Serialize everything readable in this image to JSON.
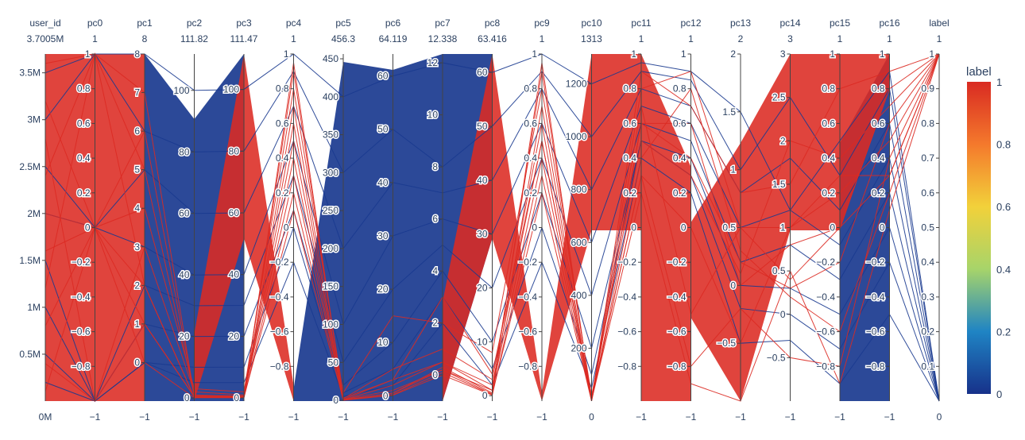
{
  "chart_data": {
    "type": "parallel_coordinates",
    "color_dimension": "label",
    "colorscale": [
      [
        "0",
        "#17318a"
      ],
      [
        "0.2",
        "#1f84c4"
      ],
      [
        "0.4",
        "#a7d46a"
      ],
      [
        "0.6",
        "#f2d13a"
      ],
      [
        "0.8",
        "#f4792c"
      ],
      [
        "1",
        "#d92a22"
      ]
    ],
    "line_colors": {
      "label_0": "#1a3a8f",
      "label_1": "#dc2a22"
    },
    "colorbar": {
      "title": "label",
      "tick_labels": [
        "0",
        "0.2",
        "0.4",
        "0.6",
        "0.8",
        "1"
      ]
    },
    "dimensions": [
      {
        "name": "user_id",
        "range": [
          0,
          3700500
        ],
        "max_label": "3.7005M",
        "min_label": "0M",
        "ticks": [
          {
            "v": 500000,
            "t": "0.5M"
          },
          {
            "v": 1000000,
            "t": "1M"
          },
          {
            "v": 1500000,
            "t": "1.5M"
          },
          {
            "v": 2000000,
            "t": "2M"
          },
          {
            "v": 2500000,
            "t": "2.5M"
          },
          {
            "v": 3000000,
            "t": "3M"
          },
          {
            "v": 3500000,
            "t": "3.5M"
          }
        ]
      },
      {
        "name": "pc0",
        "range": [
          -1,
          1
        ],
        "max_label": "1",
        "min_label": "−1",
        "ticks": [
          {
            "v": -0.8,
            "t": "−0.8"
          },
          {
            "v": -0.6,
            "t": "−0.6"
          },
          {
            "v": -0.4,
            "t": "−0.4"
          },
          {
            "v": -0.2,
            "t": "−0.2"
          },
          {
            "v": 0,
            "t": "0"
          },
          {
            "v": 0.2,
            "t": "0.2"
          },
          {
            "v": 0.4,
            "t": "0.4"
          },
          {
            "v": 0.6,
            "t": "0.6"
          },
          {
            "v": 0.8,
            "t": "0.8"
          },
          {
            "v": 1,
            "t": "1"
          }
        ]
      },
      {
        "name": "pc1",
        "range": [
          -1,
          8
        ],
        "max_label": "8",
        "min_label": "−1",
        "ticks": [
          {
            "v": 0,
            "t": "0"
          },
          {
            "v": 1,
            "t": "1"
          },
          {
            "v": 2,
            "t": "2"
          },
          {
            "v": 3,
            "t": "3"
          },
          {
            "v": 4,
            "t": "4"
          },
          {
            "v": 5,
            "t": "5"
          },
          {
            "v": 6,
            "t": "6"
          },
          {
            "v": 7,
            "t": "7"
          },
          {
            "v": 8,
            "t": "8"
          }
        ]
      },
      {
        "name": "pc2",
        "range": [
          -1,
          111.82
        ],
        "max_label": "111.82",
        "min_label": "−1",
        "ticks": [
          {
            "v": 0,
            "t": "0"
          },
          {
            "v": 20,
            "t": "20"
          },
          {
            "v": 40,
            "t": "40"
          },
          {
            "v": 60,
            "t": "60"
          },
          {
            "v": 80,
            "t": "80"
          },
          {
            "v": 100,
            "t": "100"
          }
        ]
      },
      {
        "name": "pc3",
        "range": [
          -1,
          111.47
        ],
        "max_label": "111.47",
        "min_label": "−1",
        "ticks": [
          {
            "v": 0,
            "t": "0"
          },
          {
            "v": 20,
            "t": "20"
          },
          {
            "v": 40,
            "t": "40"
          },
          {
            "v": 60,
            "t": "60"
          },
          {
            "v": 80,
            "t": "80"
          },
          {
            "v": 100,
            "t": "100"
          }
        ]
      },
      {
        "name": "pc4",
        "range": [
          -1,
          1
        ],
        "max_label": "1",
        "min_label": "−1",
        "ticks": [
          {
            "v": -0.8,
            "t": "−0.8"
          },
          {
            "v": -0.6,
            "t": "−0.6"
          },
          {
            "v": -0.4,
            "t": "−0.4"
          },
          {
            "v": -0.2,
            "t": "−0.2"
          },
          {
            "v": 0,
            "t": "0"
          },
          {
            "v": 0.2,
            "t": "0.2"
          },
          {
            "v": 0.4,
            "t": "0.4"
          },
          {
            "v": 0.6,
            "t": "0.6"
          },
          {
            "v": 0.8,
            "t": "0.8"
          },
          {
            "v": 1,
            "t": "1"
          }
        ]
      },
      {
        "name": "pc5",
        "range": [
          -1,
          456.3
        ],
        "max_label": "456.3",
        "min_label": "−1",
        "ticks": [
          {
            "v": 0,
            "t": "0"
          },
          {
            "v": 50,
            "t": "50"
          },
          {
            "v": 100,
            "t": "100"
          },
          {
            "v": 150,
            "t": "150"
          },
          {
            "v": 200,
            "t": "200"
          },
          {
            "v": 250,
            "t": "250"
          },
          {
            "v": 300,
            "t": "300"
          },
          {
            "v": 350,
            "t": "350"
          },
          {
            "v": 400,
            "t": "400"
          },
          {
            "v": 450,
            "t": "450"
          }
        ]
      },
      {
        "name": "pc6",
        "range": [
          -1,
          64.119
        ],
        "max_label": "64.119",
        "min_label": "−1",
        "ticks": [
          {
            "v": 0,
            "t": "0"
          },
          {
            "v": 10,
            "t": "10"
          },
          {
            "v": 20,
            "t": "20"
          },
          {
            "v": 30,
            "t": "30"
          },
          {
            "v": 40,
            "t": "40"
          },
          {
            "v": 50,
            "t": "50"
          },
          {
            "v": 60,
            "t": "60"
          }
        ]
      },
      {
        "name": "pc7",
        "range": [
          -1,
          12.338
        ],
        "max_label": "12.338",
        "min_label": "−1",
        "ticks": [
          {
            "v": 0,
            "t": "0"
          },
          {
            "v": 2,
            "t": "2"
          },
          {
            "v": 4,
            "t": "4"
          },
          {
            "v": 6,
            "t": "6"
          },
          {
            "v": 8,
            "t": "8"
          },
          {
            "v": 10,
            "t": "10"
          },
          {
            "v": 12,
            "t": "12"
          }
        ]
      },
      {
        "name": "pc8",
        "range": [
          -1,
          63.416
        ],
        "max_label": "63.416",
        "min_label": "−1",
        "ticks": [
          {
            "v": 0,
            "t": "0"
          },
          {
            "v": 10,
            "t": "10"
          },
          {
            "v": 20,
            "t": "20"
          },
          {
            "v": 30,
            "t": "30"
          },
          {
            "v": 40,
            "t": "40"
          },
          {
            "v": 50,
            "t": "50"
          },
          {
            "v": 60,
            "t": "60"
          }
        ]
      },
      {
        "name": "pc9",
        "range": [
          -1,
          1
        ],
        "max_label": "1",
        "min_label": "−1",
        "ticks": [
          {
            "v": -0.8,
            "t": "−0.8"
          },
          {
            "v": -0.6,
            "t": "−0.6"
          },
          {
            "v": -0.4,
            "t": "−0.4"
          },
          {
            "v": -0.2,
            "t": "−0.2"
          },
          {
            "v": 0,
            "t": "0"
          },
          {
            "v": 0.2,
            "t": "0.2"
          },
          {
            "v": 0.4,
            "t": "0.4"
          },
          {
            "v": 0.6,
            "t": "0.6"
          },
          {
            "v": 0.8,
            "t": "0.8"
          },
          {
            "v": 1,
            "t": "1"
          }
        ]
      },
      {
        "name": "pc10",
        "range": [
          0,
          1313
        ],
        "max_label": "1313",
        "min_label": "0",
        "ticks": [
          {
            "v": 200,
            "t": "200"
          },
          {
            "v": 400,
            "t": "400"
          },
          {
            "v": 600,
            "t": "600"
          },
          {
            "v": 800,
            "t": "800"
          },
          {
            "v": 1000,
            "t": "1000"
          },
          {
            "v": 1200,
            "t": "1200"
          }
        ]
      },
      {
        "name": "pc11",
        "range": [
          -1,
          1
        ],
        "max_label": "1",
        "min_label": "−1",
        "ticks": [
          {
            "v": -0.8,
            "t": "−0.8"
          },
          {
            "v": -0.6,
            "t": "−0.6"
          },
          {
            "v": -0.4,
            "t": "−0.4"
          },
          {
            "v": -0.2,
            "t": "−0.2"
          },
          {
            "v": 0,
            "t": "0"
          },
          {
            "v": 0.2,
            "t": "0.2"
          },
          {
            "v": 0.4,
            "t": "0.4"
          },
          {
            "v": 0.6,
            "t": "0.6"
          },
          {
            "v": 0.8,
            "t": "0.8"
          },
          {
            "v": 1,
            "t": "1"
          }
        ]
      },
      {
        "name": "pc12",
        "range": [
          -1,
          1
        ],
        "max_label": "1",
        "min_label": "−1",
        "ticks": [
          {
            "v": -0.8,
            "t": "−0.8"
          },
          {
            "v": -0.6,
            "t": "−0.6"
          },
          {
            "v": -0.4,
            "t": "−0.4"
          },
          {
            "v": -0.2,
            "t": "−0.2"
          },
          {
            "v": 0,
            "t": "0"
          },
          {
            "v": 0.2,
            "t": "0.2"
          },
          {
            "v": 0.4,
            "t": "0.4"
          },
          {
            "v": 0.6,
            "t": "0.6"
          },
          {
            "v": 0.8,
            "t": "0.8"
          },
          {
            "v": 1,
            "t": "1"
          }
        ]
      },
      {
        "name": "pc13",
        "range": [
          -1,
          2
        ],
        "max_label": "2",
        "min_label": "−1",
        "ticks": [
          {
            "v": -0.5,
            "t": "−0.5"
          },
          {
            "v": 0,
            "t": "0"
          },
          {
            "v": 0.5,
            "t": "0.5"
          },
          {
            "v": 1,
            "t": "1"
          },
          {
            "v": 1.5,
            "t": "1.5"
          },
          {
            "v": 2,
            "t": "2"
          }
        ]
      },
      {
        "name": "pc14",
        "range": [
          -1,
          3
        ],
        "max_label": "3",
        "min_label": "−1",
        "ticks": [
          {
            "v": -0.5,
            "t": "−0.5"
          },
          {
            "v": 0,
            "t": "0"
          },
          {
            "v": 0.5,
            "t": "0.5"
          },
          {
            "v": 1,
            "t": "1"
          },
          {
            "v": 1.5,
            "t": "1.5"
          },
          {
            "v": 2,
            "t": "2"
          },
          {
            "v": 2.5,
            "t": "2.5"
          },
          {
            "v": 3,
            "t": "3"
          }
        ]
      },
      {
        "name": "pc15",
        "range": [
          -1,
          1
        ],
        "max_label": "1",
        "min_label": "−1",
        "ticks": [
          {
            "v": -0.8,
            "t": "−0.8"
          },
          {
            "v": -0.6,
            "t": "−0.6"
          },
          {
            "v": -0.4,
            "t": "−0.4"
          },
          {
            "v": -0.2,
            "t": "−0.2"
          },
          {
            "v": 0,
            "t": "0"
          },
          {
            "v": 0.2,
            "t": "0.2"
          },
          {
            "v": 0.4,
            "t": "0.4"
          },
          {
            "v": 0.6,
            "t": "0.6"
          },
          {
            "v": 0.8,
            "t": "0.8"
          },
          {
            "v": 1,
            "t": "1"
          }
        ]
      },
      {
        "name": "pc16",
        "range": [
          -1,
          1
        ],
        "max_label": "1",
        "min_label": "−1",
        "ticks": [
          {
            "v": -0.8,
            "t": "−0.8"
          },
          {
            "v": -0.6,
            "t": "−0.6"
          },
          {
            "v": -0.4,
            "t": "−0.4"
          },
          {
            "v": -0.2,
            "t": "−0.2"
          },
          {
            "v": 0,
            "t": "0"
          },
          {
            "v": 0.2,
            "t": "0.2"
          },
          {
            "v": 0.4,
            "t": "0.4"
          },
          {
            "v": 0.6,
            "t": "0.6"
          },
          {
            "v": 0.8,
            "t": "0.8"
          },
          {
            "v": 1,
            "t": "1"
          }
        ]
      },
      {
        "name": "label",
        "range": [
          0,
          1
        ],
        "max_label": "1",
        "min_label": "0",
        "ticks": [
          {
            "v": 0.1,
            "t": "0.1"
          },
          {
            "v": 0.2,
            "t": "0.2"
          },
          {
            "v": 0.3,
            "t": "0.3"
          },
          {
            "v": 0.4,
            "t": "0.4"
          },
          {
            "v": 0.5,
            "t": "0.5"
          },
          {
            "v": 0.6,
            "t": "0.6"
          },
          {
            "v": 0.7,
            "t": "0.7"
          },
          {
            "v": 0.8,
            "t": "0.8"
          },
          {
            "v": 0.9,
            "t": "0.9"
          },
          {
            "v": 1,
            "t": "1"
          }
        ]
      }
    ],
    "lines_label_1": [
      [
        3600000,
        1,
        7,
        0.5,
        0.3,
        0.95,
        0.5,
        0.5,
        0.3,
        0.5,
        0.95,
        2,
        0.8,
        0.9,
        0.5,
        0.4,
        0.0,
        0.8,
        1
      ],
      [
        3200000,
        0,
        6,
        1,
        0.5,
        0.9,
        1,
        1,
        0.2,
        1,
        0.9,
        4,
        0.6,
        0.4,
        0.2,
        0.3,
        -0.2,
        0.6,
        1
      ],
      [
        2800000,
        -1,
        3,
        2,
        1,
        0.3,
        3,
        3,
        0.5,
        2,
        0.5,
        5,
        0.3,
        0.0,
        -0.5,
        1,
        0.3,
        0.3,
        1
      ],
      [
        2400000,
        1,
        2,
        0.2,
        0.1,
        0.7,
        0.2,
        0.2,
        0.1,
        0.2,
        0.7,
        1,
        0.9,
        0.7,
        0.8,
        1.5,
        0.8,
        0.9,
        1
      ],
      [
        2000000,
        0,
        1,
        0.5,
        0.5,
        0.5,
        2,
        5,
        1,
        3,
        0.6,
        3,
        0.2,
        -0.9,
        -1,
        0.5,
        -0.9,
        0.1,
        1
      ],
      [
        1600000,
        0,
        4,
        3,
        2,
        0.8,
        10,
        15,
        2,
        8,
        0.8,
        20,
        0.5,
        0.3,
        0.1,
        2,
        0.4,
        0.7,
        1
      ],
      [
        1200000,
        1,
        5,
        0.8,
        0.7,
        0.4,
        0.5,
        2,
        0.5,
        1,
        0.4,
        2,
        0.7,
        -0.5,
        0.5,
        1,
        0.2,
        0.5,
        1
      ],
      [
        800000,
        0,
        0,
        0.1,
        0.1,
        0.2,
        0.1,
        0.1,
        0.0,
        0.1,
        0.3,
        0.5,
        0.4,
        0.8,
        0.3,
        0.2,
        -0.6,
        0.2,
        1
      ],
      [
        400000,
        -1,
        1,
        0.4,
        0.3,
        0.6,
        1,
        3,
        3,
        4,
        0.5,
        1,
        0.3,
        -0.8,
        -0.2,
        -0.5,
        -0.8,
        0.4,
        1
      ],
      [
        100000,
        0,
        2,
        0.2,
        0.2,
        0.1,
        0.3,
        0.5,
        0.2,
        0.3,
        0.2,
        0.2,
        0.6,
        0.6,
        0.0,
        0.8,
        0.0,
        0.3,
        1
      ]
    ],
    "lines_label_0": [
      [
        3500000,
        1,
        8,
        100,
        100,
        1,
        400,
        60,
        12,
        60,
        1,
        1200,
        0.95,
        0.9,
        1.5,
        1.2,
        0.5,
        0.9,
        0
      ],
      [
        3000000,
        1,
        6,
        80,
        80,
        0.9,
        300,
        50,
        8,
        50,
        0.9,
        1000,
        0.9,
        0.85,
        1.0,
        2.5,
        0.3,
        0.8,
        0
      ],
      [
        2500000,
        0,
        5,
        60,
        60,
        0.7,
        200,
        40,
        7,
        40,
        0.8,
        800,
        0.8,
        0.7,
        0.8,
        1.8,
        0.1,
        0.6,
        0
      ],
      [
        2000000,
        0,
        3,
        40,
        40,
        0.5,
        100,
        30,
        6,
        30,
        0.6,
        600,
        0.7,
        0.6,
        0.5,
        1.2,
        -0.1,
        0.4,
        0
      ],
      [
        1500000,
        -1,
        2,
        30,
        30,
        0.3,
        50,
        20,
        5,
        20,
        0.4,
        400,
        0.6,
        0.5,
        0.2,
        0.8,
        -0.3,
        0.2,
        0
      ],
      [
        1000000,
        -1,
        1,
        20,
        20,
        0.1,
        20,
        10,
        4,
        10,
        0.2,
        200,
        0.5,
        0.4,
        0.0,
        0.3,
        -0.5,
        0.0,
        0
      ],
      [
        500000,
        -1,
        0,
        10,
        10,
        0.0,
        10,
        5,
        3,
        5,
        0.0,
        100,
        0.5,
        0.3,
        -0.2,
        0.0,
        -0.7,
        -0.2,
        0
      ],
      [
        200000,
        -1,
        0,
        5,
        5,
        -0.2,
        5,
        2,
        2,
        2,
        -0.2,
        50,
        0.4,
        0.2,
        -0.5,
        -0.3,
        -0.9,
        -0.5,
        0
      ]
    ]
  }
}
